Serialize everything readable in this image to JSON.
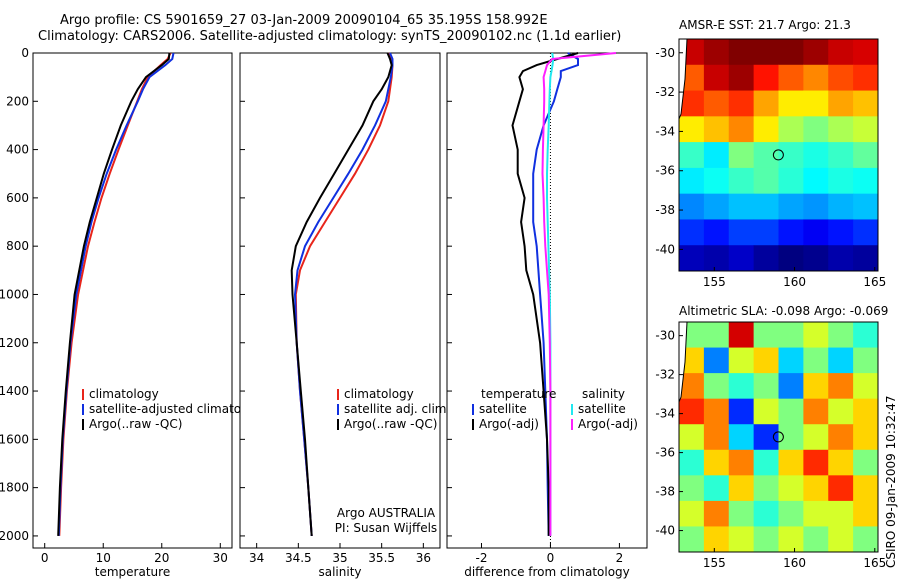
{
  "title_line1": "Argo profile: CS 5901659_27 03-Jan-2009 20090104_65 35.195S 158.992E",
  "title_line2": "Climatology: CARS2006. Satellite-adjusted climatology: synTS_20090102.nc (1.1d earlier)",
  "map1_title": "AMSR-E SST: 21.7 Argo: 21.3",
  "map2_title": "Altimetric SLA: -0.098 Argo: -0.069",
  "side_label": "CSIRO 09-Jan-2009 10:32:47",
  "argo_label_1": "Argo AUSTRALIA",
  "argo_label_2": "PI: Susan Wijffels",
  "colors": {
    "climatology": "#e8251b",
    "satellite": "#1030e0",
    "argo": "#000000",
    "sat_diff": "#20e8f0",
    "argo_diff": "#ff20ff"
  },
  "chart_data": [
    {
      "type": "line",
      "xlabel": "temperature",
      "ylabel": "",
      "xlim": [
        -2,
        32
      ],
      "ylim": [
        2050,
        0
      ],
      "xticks": [
        0,
        10,
        20,
        30
      ],
      "yticks": [
        0,
        200,
        400,
        600,
        800,
        1000,
        1200,
        1400,
        1600,
        1800,
        2000
      ],
      "legend": [
        "climatology",
        "satellite-adjusted climatology",
        "Argo(..raw -QC)"
      ],
      "depth": [
        0,
        25,
        50,
        100,
        150,
        200,
        300,
        400,
        500,
        600,
        700,
        800,
        1000,
        1200,
        1400,
        1600,
        1800,
        2000
      ],
      "series": [
        {
          "name": "climatology",
          "values": [
            21.5,
            21.0,
            19.8,
            17.6,
            16.6,
            15.8,
            14.2,
            12.6,
            11.1,
            9.7,
            8.5,
            7.4,
            5.7,
            4.6,
            3.8,
            3.2,
            2.8,
            2.5
          ]
        },
        {
          "name": "satellite-adjusted climatology",
          "values": [
            22.0,
            21.8,
            20.6,
            17.9,
            16.8,
            15.9,
            14.0,
            12.2,
            10.6,
            9.2,
            8.0,
            7.0,
            5.4,
            4.4,
            3.7,
            3.1,
            2.7,
            2.4
          ]
        },
        {
          "name": "Argo(..raw -QC)",
          "values": [
            21.3,
            21.2,
            20.0,
            17.3,
            15.9,
            14.8,
            13.0,
            11.5,
            10.1,
            8.9,
            7.7,
            6.7,
            5.1,
            4.3,
            3.6,
            3.0,
            2.6,
            2.3
          ]
        }
      ]
    },
    {
      "type": "line",
      "xlabel": "salinity",
      "xlim": [
        33.8,
        36.2
      ],
      "ylim": [
        2050,
        0
      ],
      "xticks": [
        34,
        34.5,
        35,
        35.5,
        36
      ],
      "legend": [
        "climatology",
        "satellite adj. clim.",
        "Argo(..raw -QC)"
      ],
      "depth": [
        0,
        25,
        50,
        100,
        150,
        200,
        300,
        400,
        500,
        600,
        700,
        800,
        900,
        1000,
        1200,
        1400,
        1600,
        1800,
        2000
      ],
      "series": [
        {
          "name": "climatology",
          "values": [
            35.58,
            35.62,
            35.63,
            35.62,
            35.6,
            35.58,
            35.48,
            35.34,
            35.18,
            35.0,
            34.82,
            34.64,
            34.52,
            34.47,
            34.48,
            34.52,
            34.57,
            34.62,
            34.66
          ]
        },
        {
          "name": "satellite adj. clim.",
          "values": [
            35.6,
            35.63,
            35.63,
            35.61,
            35.58,
            35.55,
            35.42,
            35.27,
            35.1,
            34.92,
            34.74,
            34.58,
            34.49,
            34.46,
            34.48,
            34.52,
            34.57,
            34.62,
            34.66
          ]
        },
        {
          "name": "Argo(..raw -QC)",
          "values": [
            35.57,
            35.6,
            35.62,
            35.58,
            35.5,
            35.4,
            35.27,
            35.1,
            34.93,
            34.76,
            34.6,
            34.47,
            34.42,
            34.43,
            34.48,
            34.53,
            34.58,
            34.62,
            34.66
          ]
        }
      ]
    },
    {
      "type": "line",
      "xlabel": "difference from climatology",
      "xlim": [
        -3,
        2.8
      ],
      "ylim": [
        2050,
        0
      ],
      "xticks": [
        -2,
        0,
        2
      ],
      "legend_left_title": "temperature",
      "legend_right_title": "salinity",
      "legend": [
        "satellite",
        "Argo(-adj)",
        "satellite",
        "Argo(-adj)"
      ],
      "depth": [
        0,
        25,
        50,
        75,
        100,
        150,
        200,
        300,
        400,
        500,
        600,
        700,
        800,
        900,
        1000,
        1200,
        1400,
        1600,
        1800,
        2000
      ],
      "series": [
        {
          "name": "satellite",
          "values": [
            0.5,
            0.8,
            0.8,
            0.3,
            0.3,
            0.2,
            0.1,
            -0.2,
            -0.4,
            -0.5,
            -0.5,
            -0.5,
            -0.4,
            -0.35,
            -0.3,
            -0.2,
            -0.15,
            -0.1,
            -0.08,
            -0.05
          ]
        },
        {
          "name": "Argo(-adj)",
          "values": [
            0.8,
            0.2,
            -0.4,
            -0.8,
            -0.9,
            -0.8,
            -0.9,
            -1.1,
            -0.95,
            -0.95,
            -0.75,
            -0.85,
            -0.75,
            -0.7,
            -0.5,
            -0.3,
            -0.2,
            -0.1,
            -0.05,
            -0.05
          ]
        },
        {
          "name": "satellite",
          "values": [
            0.05,
            0.08,
            0.06,
            0.03,
            0.0,
            -0.02,
            -0.03,
            -0.05,
            -0.08,
            -0.1,
            -0.1,
            -0.08,
            -0.06,
            -0.04,
            -0.02,
            0.0,
            0.0,
            0.0,
            0.0,
            0.0
          ]
        },
        {
          "name": "Argo(-adj)",
          "values": [
            1.9,
            0.05,
            -0.1,
            -0.15,
            -0.2,
            -0.18,
            -0.18,
            -0.2,
            -0.22,
            -0.23,
            -0.2,
            -0.18,
            -0.15,
            -0.1,
            -0.05,
            -0.02,
            0.0,
            0.0,
            0.0,
            0.0
          ]
        }
      ]
    },
    {
      "type": "heatmap",
      "title": "AMSR-E SST: 21.7 Argo: 21.3",
      "xlim": [
        152.8,
        165.2
      ],
      "ylim": [
        -41.1,
        -29.3
      ],
      "xticks": [
        155,
        160,
        165
      ],
      "yticks": [
        -30,
        -32,
        -34,
        -36,
        -38,
        -40
      ],
      "argo_position": [
        158.992,
        -35.195
      ],
      "value_range": [
        16,
        23
      ],
      "rows": [
        [
          22.5,
          22.8,
          23.0,
          23.0,
          23.0,
          22.8,
          22.5,
          22.4
        ],
        [
          21.5,
          22.5,
          22.8,
          22.0,
          21.5,
          21.2,
          21.6,
          21.8
        ],
        [
          21.8,
          21.5,
          21.8,
          21.0,
          20.5,
          20.5,
          21.0,
          20.8
        ],
        [
          20.5,
          20.8,
          21.2,
          20.5,
          19.8,
          19.5,
          19.8,
          20.0
        ],
        [
          19.0,
          18.5,
          19.5,
          19.2,
          19.0,
          18.8,
          19.0,
          19.3
        ],
        [
          18.5,
          18.7,
          19.0,
          19.2,
          18.9,
          18.6,
          18.8,
          18.7
        ],
        [
          17.8,
          18.0,
          18.2,
          18.2,
          18.0,
          17.9,
          18.1,
          18.2
        ],
        [
          17.2,
          17.0,
          17.3,
          17.3,
          17.0,
          16.8,
          17.0,
          17.2
        ],
        [
          16.4,
          16.3,
          16.5,
          16.2,
          16.0,
          16.1,
          16.3,
          16.2
        ]
      ]
    },
    {
      "type": "heatmap",
      "title": "Altimetric SLA: -0.098 Argo: -0.069",
      "xlim": [
        152.8,
        165.2
      ],
      "ylim": [
        -41.1,
        -29.3
      ],
      "xticks": [
        155,
        160,
        165
      ],
      "yticks": [
        -30,
        -32,
        -34,
        -36,
        -38,
        -40
      ],
      "argo_position": [
        158.992,
        -35.195
      ],
      "value_range": [
        -0.3,
        0.3
      ],
      "rows": [
        [
          0.0,
          0.0,
          0.25,
          0.0,
          0.0,
          0.05,
          0.0,
          -0.05
        ],
        [
          0.1,
          -0.15,
          0.05,
          0.1,
          -0.1,
          0.0,
          -0.1,
          0.0
        ],
        [
          0.15,
          0.0,
          -0.05,
          0.0,
          -0.15,
          0.1,
          0.15,
          0.05
        ],
        [
          0.2,
          0.15,
          -0.2,
          0.05,
          0.0,
          0.15,
          0.05,
          0.1
        ],
        [
          0.05,
          0.15,
          -0.1,
          -0.2,
          0.0,
          0.05,
          0.15,
          0.1
        ],
        [
          -0.05,
          0.1,
          0.15,
          -0.05,
          0.1,
          0.2,
          0.1,
          0.0
        ],
        [
          0.0,
          -0.05,
          0.1,
          0.0,
          0.05,
          0.1,
          0.2,
          0.1
        ],
        [
          0.05,
          0.15,
          0.0,
          -0.05,
          0.0,
          0.05,
          0.05,
          0.1
        ],
        [
          0.0,
          0.1,
          0.05,
          0.0,
          0.05,
          0.0,
          0.05,
          0.0
        ]
      ]
    }
  ]
}
